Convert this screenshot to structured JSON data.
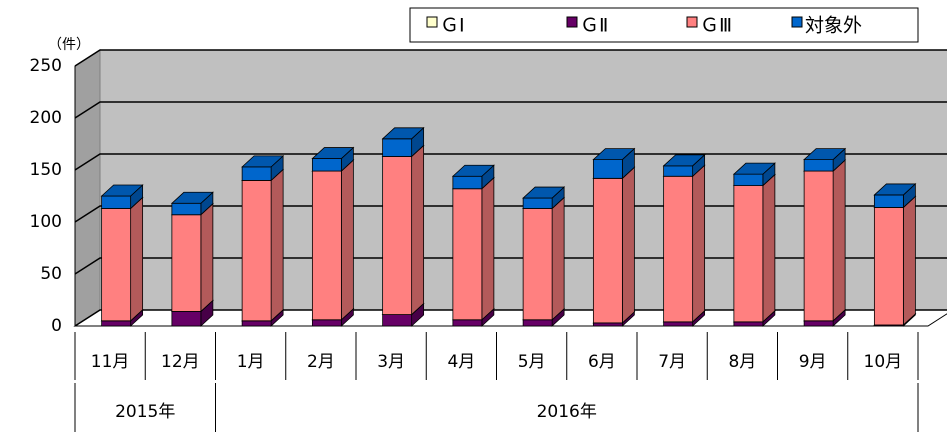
{
  "chart_data": {
    "type": "bar3d-stacked",
    "unit_label": "（件）",
    "categories": [
      "11月",
      "12月",
      "1月",
      "2月",
      "3月",
      "4月",
      "5月",
      "6月",
      "7月",
      "8月",
      "9月",
      "10月"
    ],
    "groups": [
      {
        "name": "2015年",
        "span": 2
      },
      {
        "name": "2016年",
        "span": 10
      }
    ],
    "series": [
      {
        "name": "ＧⅠ",
        "color": "#ffffcc",
        "values": [
          0,
          0,
          0,
          0,
          0,
          0,
          0,
          0,
          0,
          0,
          0,
          0
        ]
      },
      {
        "name": "ＧⅡ",
        "color": "#660066",
        "values": [
          5,
          14,
          5,
          6,
          11,
          6,
          6,
          3,
          4,
          4,
          5,
          1
        ]
      },
      {
        "name": "ＧⅢ",
        "color": "#ff8080",
        "values": [
          108,
          93,
          135,
          143,
          152,
          126,
          107,
          139,
          140,
          131,
          144,
          113
        ]
      },
      {
        "name": "対象外",
        "color": "#0066cc",
        "values": [
          12,
          11,
          13,
          12,
          17,
          12,
          10,
          18,
          10,
          11,
          11,
          12
        ]
      }
    ],
    "ylim": [
      0,
      250
    ],
    "yticks": [
      0,
      50,
      100,
      150,
      200,
      250
    ],
    "grid": true
  }
}
